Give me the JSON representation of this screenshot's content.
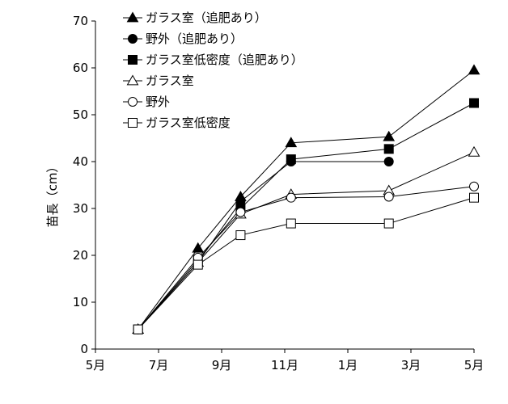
{
  "chart_data": {
    "type": "line",
    "ylabel": "苗長（cm）",
    "ylim": [
      0,
      70
    ],
    "yticks": [
      "0",
      "10",
      "20",
      "30",
      "40",
      "50",
      "60",
      "70"
    ],
    "xlim": [
      0,
      12
    ],
    "xticks": [
      {
        "pos": 0,
        "label": "5月"
      },
      {
        "pos": 2,
        "label": "7月"
      },
      {
        "pos": 4,
        "label": "9月"
      },
      {
        "pos": 6,
        "label": "11月"
      },
      {
        "pos": 8,
        "label": "1月"
      },
      {
        "pos": 10,
        "label": "3月"
      },
      {
        "pos": 12,
        "label": "5月"
      }
    ],
    "legend_position": "top-left",
    "series": [
      {
        "name": "ガラス室（追肥あり）",
        "marker": "triangle",
        "filled": true,
        "x": [
          1.35,
          3.25,
          4.6,
          6.2,
          9.3,
          12.0
        ],
        "y": [
          4.2,
          21.5,
          32.5,
          44.0,
          45.3,
          59.5
        ]
      },
      {
        "name": "野外（追肥あり）",
        "marker": "circle",
        "filled": true,
        "x": [
          1.35,
          3.25,
          4.6,
          6.2,
          9.3
        ],
        "y": [
          4.2,
          18.5,
          31.5,
          40.0,
          40.0
        ]
      },
      {
        "name": "ガラス室低密度（追肥あり）",
        "marker": "square",
        "filled": true,
        "x": [
          1.35,
          3.25,
          4.6,
          6.2,
          9.3,
          12.0
        ],
        "y": [
          4.2,
          19.0,
          30.0,
          40.5,
          42.7,
          52.5
        ]
      },
      {
        "name": "ガラス室",
        "marker": "triangle",
        "filled": false,
        "x": [
          1.35,
          3.25,
          4.6,
          6.2,
          9.3,
          12.0
        ],
        "y": [
          4.2,
          18.5,
          28.8,
          33.0,
          33.8,
          42.0
        ]
      },
      {
        "name": "野外",
        "marker": "circle",
        "filled": false,
        "x": [
          1.35,
          3.25,
          4.6,
          6.2,
          9.3,
          12.0
        ],
        "y": [
          4.2,
          19.5,
          29.2,
          32.3,
          32.5,
          34.7
        ]
      },
      {
        "name": "ガラス室低密度",
        "marker": "square",
        "filled": false,
        "x": [
          1.35,
          3.25,
          4.6,
          6.2,
          9.3,
          12.0
        ],
        "y": [
          4.2,
          18.0,
          24.3,
          26.8,
          26.8,
          32.3
        ]
      }
    ]
  }
}
